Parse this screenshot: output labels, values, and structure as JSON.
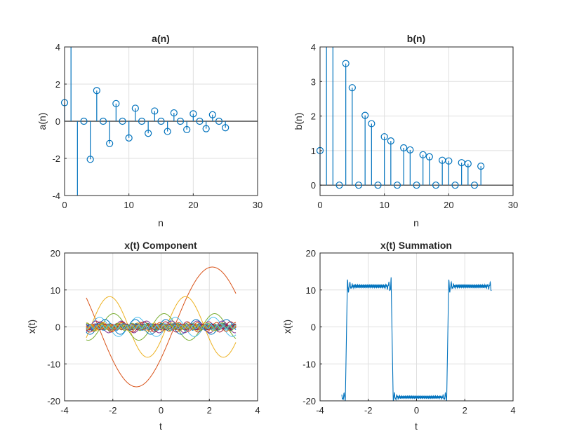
{
  "chart_data": [
    {
      "type": "stem",
      "title": "a(n)",
      "xlabel": "n",
      "ylabel": "a(n)",
      "xlim": [
        0,
        30
      ],
      "ylim": [
        -4,
        4
      ],
      "xticks": [
        0,
        10,
        20,
        30
      ],
      "yticks": [
        -4,
        -2,
        0,
        2,
        4
      ],
      "grid": true,
      "color": "#0072bd",
      "x": [
        0,
        1,
        2,
        3,
        4,
        5,
        6,
        7,
        8,
        9,
        10,
        11,
        12,
        13,
        14,
        15,
        16,
        17,
        18,
        19,
        20,
        21,
        22,
        23,
        24,
        25
      ],
      "values": [
        1.0,
        6.0,
        -6.0,
        0.0,
        -2.05,
        1.65,
        0.0,
        -1.2,
        0.95,
        0.0,
        -0.9,
        0.7,
        0.0,
        -0.65,
        0.55,
        0.0,
        -0.55,
        0.45,
        0.0,
        -0.45,
        0.4,
        0.0,
        -0.4,
        0.35,
        0.0,
        -0.35
      ]
    },
    {
      "type": "stem",
      "title": "b(n)",
      "xlabel": "n",
      "ylabel": "b(n)",
      "xlim": [
        0,
        30
      ],
      "ylim": [
        -0.3,
        4
      ],
      "xticks": [
        0,
        10,
        20,
        30
      ],
      "yticks": [
        0,
        1,
        2,
        3,
        4
      ],
      "grid": true,
      "color": "#0072bd",
      "x": [
        0,
        1,
        2,
        3,
        4,
        5,
        6,
        7,
        8,
        9,
        10,
        11,
        12,
        13,
        14,
        15,
        16,
        17,
        18,
        19,
        20,
        21,
        22,
        23,
        24,
        25
      ],
      "values": [
        1.0,
        8.0,
        6.0,
        0.0,
        3.52,
        2.82,
        0.0,
        2.02,
        1.78,
        0.0,
        1.4,
        1.28,
        0.0,
        1.08,
        1.02,
        0.0,
        0.88,
        0.82,
        0.0,
        0.72,
        0.7,
        0.0,
        0.65,
        0.62,
        0.0,
        0.55
      ]
    },
    {
      "type": "line",
      "title": "x(t) Component",
      "xlabel": "t",
      "ylabel": "x(t)",
      "xlim": [
        -4,
        4
      ],
      "ylim": [
        -20,
        20
      ],
      "xticks": [
        -4,
        -2,
        0,
        2,
        4
      ],
      "yticks": [
        -20,
        -10,
        0,
        10,
        20
      ],
      "grid": true,
      "t_range": [
        -3.1,
        3.1
      ],
      "series": [
        {
          "color": "#d95319",
          "amplitude": 16.2,
          "frequency": 1,
          "phase": -0.55
        },
        {
          "color": "#edb120",
          "amplitude": 8.2,
          "frequency": 2,
          "phase": -0.45
        },
        {
          "color": "#77ac30",
          "amplitude": 3.6,
          "frequency": 3,
          "phase": 1.2
        },
        {
          "color": "#4dbeee",
          "amplitude": 2.6,
          "frequency": 4,
          "phase": -0.8
        },
        {
          "color": "#0072bd",
          "amplitude": 2.0,
          "frequency": 5,
          "phase": 0.6
        },
        {
          "color": "#7e2f8e",
          "amplitude": 1.6,
          "frequency": 6,
          "phase": -1.1
        },
        {
          "color": "#a2142f",
          "amplitude": 1.4,
          "frequency": 7,
          "phase": 0.3
        },
        {
          "color": "#d95319",
          "amplitude": 1.2,
          "frequency": 8,
          "phase": 2.0
        },
        {
          "color": "#edb120",
          "amplitude": 1.1,
          "frequency": 9,
          "phase": -2.2
        },
        {
          "color": "#77ac30",
          "amplitude": 1.0,
          "frequency": 10,
          "phase": 0.9
        },
        {
          "color": "#4dbeee",
          "amplitude": 0.9,
          "frequency": 11,
          "phase": -0.2
        },
        {
          "color": "#0072bd",
          "amplitude": 0.9,
          "frequency": 12,
          "phase": 1.6
        },
        {
          "color": "#7e2f8e",
          "amplitude": 0.8,
          "frequency": 13,
          "phase": -1.5
        },
        {
          "color": "#a2142f",
          "amplitude": 0.8,
          "frequency": 14,
          "phase": 2.6
        },
        {
          "color": "#d95319",
          "amplitude": 0.7,
          "frequency": 15,
          "phase": 0.1
        },
        {
          "color": "#edb120",
          "amplitude": 0.7,
          "frequency": 16,
          "phase": -2.8
        },
        {
          "color": "#77ac30",
          "amplitude": 0.7,
          "frequency": 17,
          "phase": 1.1
        },
        {
          "color": "#4dbeee",
          "amplitude": 0.6,
          "frequency": 18,
          "phase": -0.6
        },
        {
          "color": "#0072bd",
          "amplitude": 0.6,
          "frequency": 19,
          "phase": 2.3
        },
        {
          "color": "#7e2f8e",
          "amplitude": 0.6,
          "frequency": 20,
          "phase": -1.9
        },
        {
          "color": "#a2142f",
          "amplitude": 0.6,
          "frequency": 21,
          "phase": 0.5
        },
        {
          "color": "#d95319",
          "amplitude": 0.5,
          "frequency": 22,
          "phase": 1.4
        },
        {
          "color": "#edb120",
          "amplitude": 0.5,
          "frequency": 23,
          "phase": -1.2
        },
        {
          "color": "#77ac30",
          "amplitude": 0.5,
          "frequency": 24,
          "phase": 2.9
        },
        {
          "color": "#4dbeee",
          "amplitude": 0.5,
          "frequency": 25,
          "phase": -0.3
        }
      ]
    },
    {
      "type": "line",
      "title": "x(t) Summation",
      "xlabel": "t",
      "ylabel": "x(t)",
      "xlim": [
        -4,
        4
      ],
      "ylim": [
        -20,
        20
      ],
      "xticks": [
        -4,
        -2,
        0,
        2,
        4
      ],
      "yticks": [
        -20,
        -10,
        0,
        10,
        20
      ],
      "grid": true,
      "t_range": [
        -3.1,
        3.1
      ],
      "color": "#0072bd",
      "high_level": 11,
      "low_level": -19,
      "period": 4.2,
      "high_start": -2.95,
      "high_duration": 1.9
    }
  ]
}
